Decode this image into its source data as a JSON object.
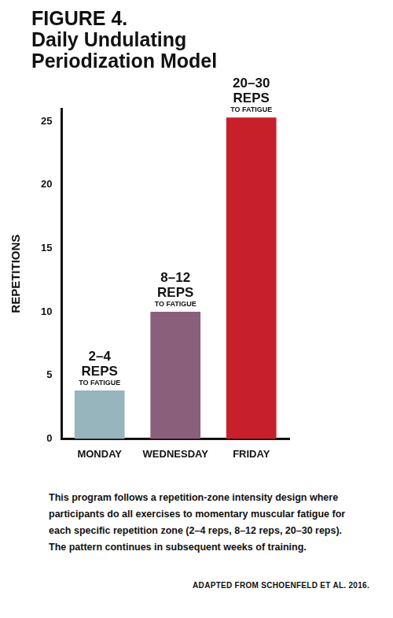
{
  "chart_data": {
    "type": "bar",
    "title": [
      "FIGURE 4.",
      "Daily Undulating",
      "Periodization Model"
    ],
    "y_label": "REPETITIONS",
    "categories": [
      "MONDAY",
      "WEDNESDAY",
      "FRIDAY"
    ],
    "values": [
      3.8,
      10,
      25.3
    ],
    "colors": [
      "#97b5bd",
      "#8a5f7b",
      "#c8202a"
    ],
    "ylim": [
      0,
      26
    ],
    "yticks": [
      0,
      5,
      10,
      15,
      20,
      25
    ],
    "grid": false,
    "annotations": [
      [
        "2–4",
        "REPS",
        "TO FATIGUE"
      ],
      [
        "8–12",
        "REPS",
        "TO FATIGUE"
      ],
      [
        "20–30",
        "REPS",
        "TO FATIGUE"
      ]
    ],
    "caption": "This program follows a repetition-zone intensity design where participants do all exercises to momentary muscular fatigue for each specific repetition zone (2–4 reps, 8–12 reps, 20–30 reps). The pattern continues in subsequent weeks of training.",
    "source": "ADAPTED FROM SCHOENFELD ET AL. 2016."
  }
}
